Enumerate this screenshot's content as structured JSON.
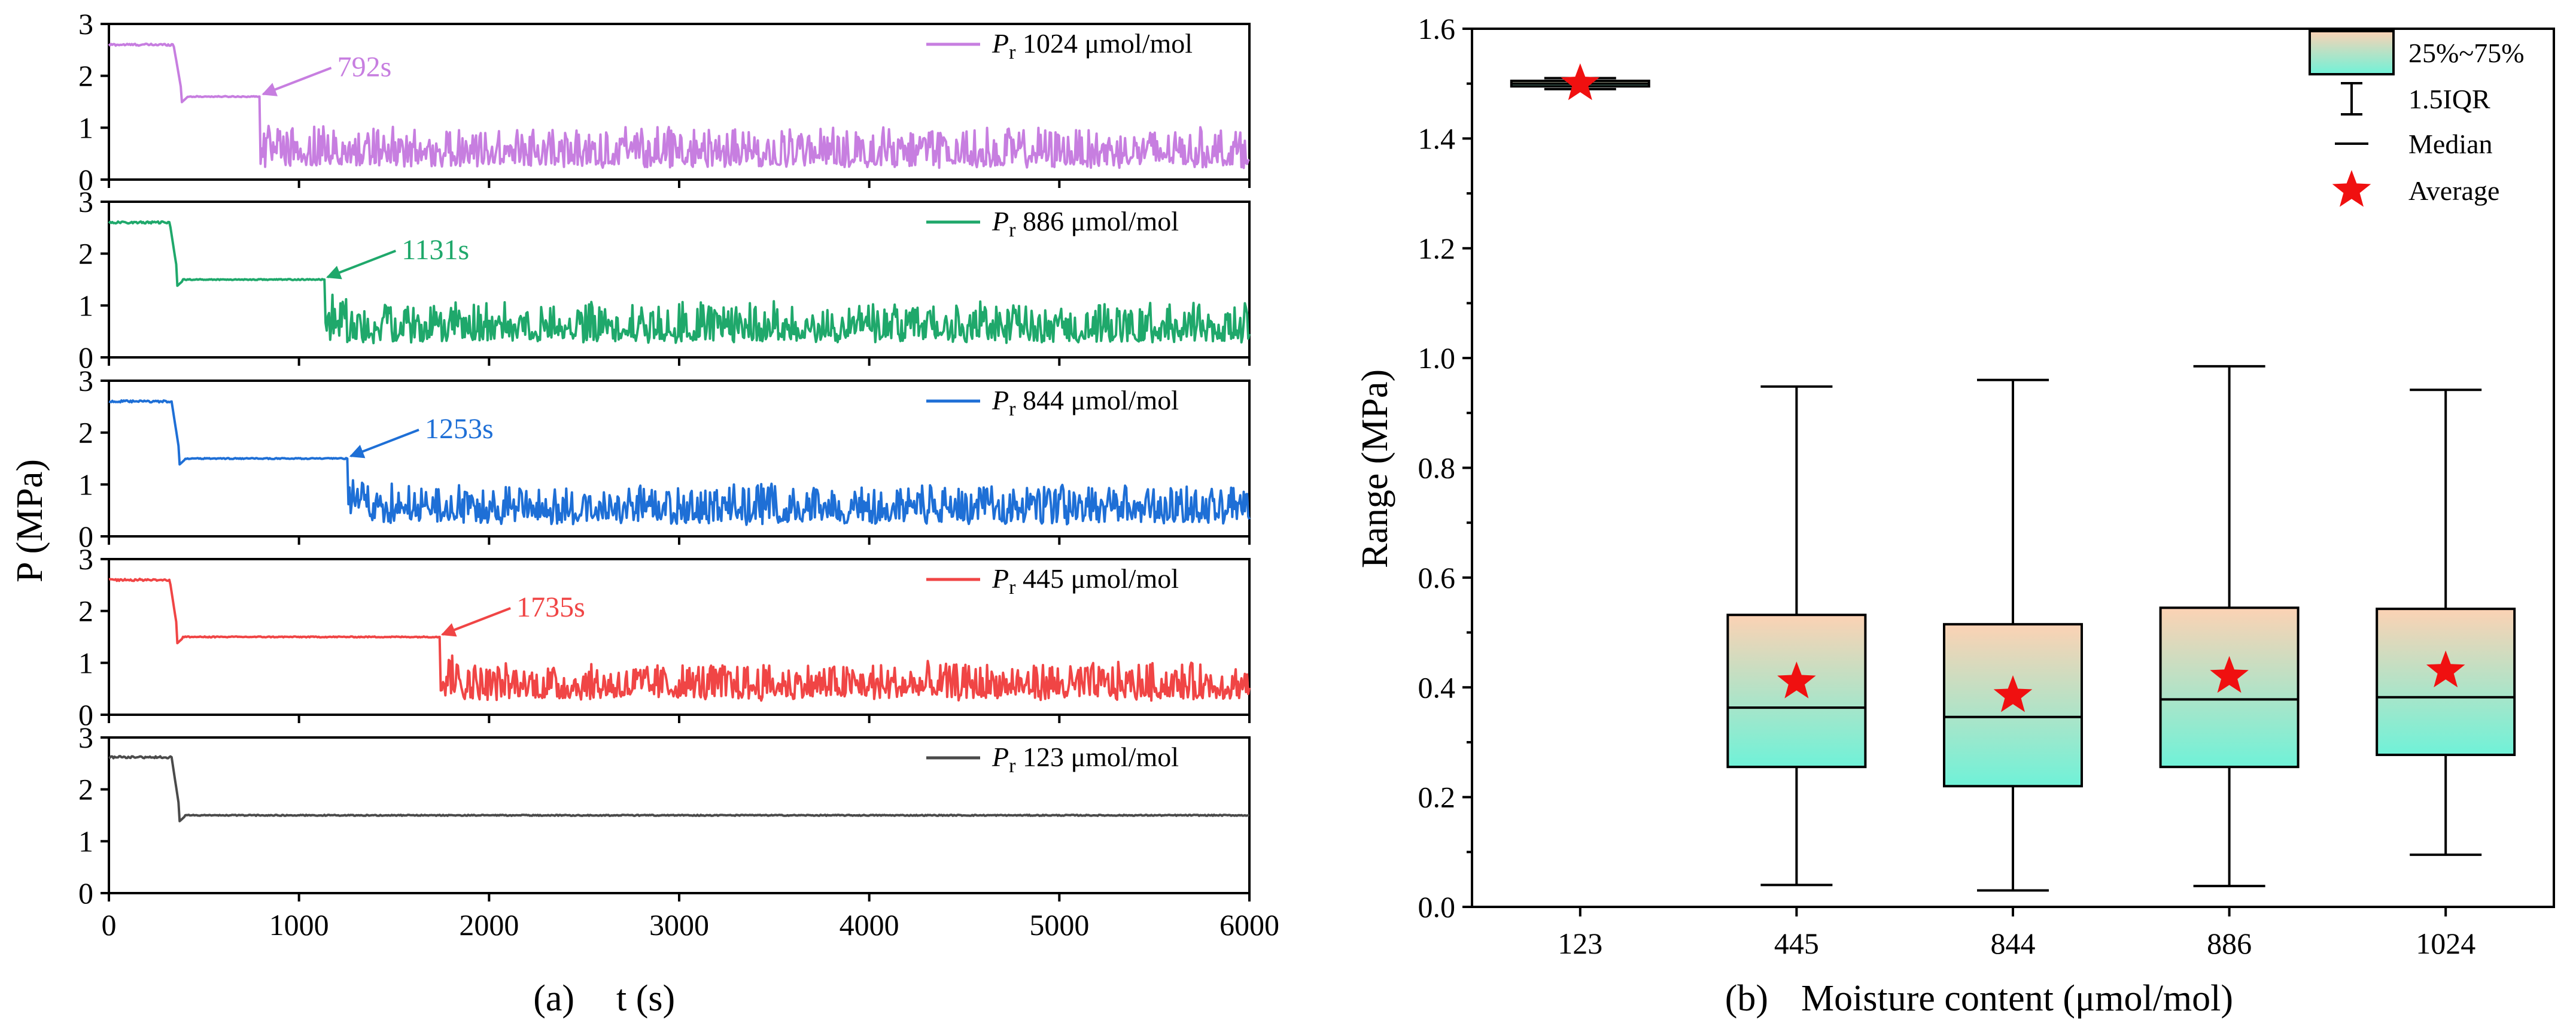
{
  "chart_data": [
    {
      "type": "line",
      "panel_label": "(a)",
      "xlabel": "t (s)",
      "ylabel": "P (MPa)",
      "xlim": [
        0,
        6000
      ],
      "x_ticks": [
        "0",
        "1000",
        "2000",
        "3000",
        "4000",
        "5000",
        "6000"
      ],
      "series": [
        {
          "name": "1024 μmol/mol",
          "symbol": "P",
          "subscript": "r",
          "color": "#c77ee0",
          "change_time": 792,
          "annotation": "792s",
          "initial": 2.6,
          "drop_time": 380,
          "plateau": 1.6,
          "osc_mean": 0.4,
          "osc_amp": 0.7,
          "ylim": [
            0,
            3
          ],
          "y_ticks": [
            "0",
            "1",
            "2",
            "3"
          ]
        },
        {
          "name": "886 μmol/mol",
          "symbol": "P",
          "subscript": "r",
          "color": "#1fa86b",
          "change_time": 1131,
          "annotation": "1131s",
          "initial": 2.6,
          "drop_time": 360,
          "plateau": 1.5,
          "osc_mean": 0.45,
          "osc_amp": 0.7,
          "ylim": [
            0,
            3
          ],
          "y_ticks": [
            "0",
            "1",
            "2",
            "3"
          ]
        },
        {
          "name": "844 μmol/mol",
          "symbol": "P",
          "subscript": "r",
          "color": "#1e6fd6",
          "change_time": 1253,
          "annotation": "1253s",
          "initial": 2.6,
          "drop_time": 370,
          "plateau": 1.5,
          "osc_mean": 0.4,
          "osc_amp": 0.7,
          "ylim": [
            0,
            3
          ],
          "y_ticks": [
            "0",
            "1",
            "2",
            "3"
          ]
        },
        {
          "name": "445 μmol/mol",
          "symbol": "P",
          "subscript": "r",
          "color": "#f04545",
          "change_time": 1735,
          "annotation": "1735s",
          "initial": 2.6,
          "drop_time": 360,
          "plateau": 1.5,
          "osc_mean": 0.45,
          "osc_amp": 0.65,
          "ylim": [
            0,
            3
          ],
          "y_ticks": [
            "0",
            "1",
            "2",
            "3"
          ]
        },
        {
          "name": "123 μmol/mol",
          "symbol": "P",
          "subscript": "r",
          "color": "#4a4a4a",
          "change_time": null,
          "annotation": "",
          "initial": 2.62,
          "drop_time": 370,
          "plateau": 1.5,
          "osc_mean": 1.5,
          "osc_amp": 0.0,
          "ylim": [
            0,
            3
          ],
          "y_ticks": [
            "0",
            "1",
            "2",
            "3"
          ]
        }
      ]
    },
    {
      "type": "box",
      "panel_label": "(b)",
      "xlabel": "Moisture content (μmol/mol)",
      "ylabel": "Range (MPa)",
      "ylim": [
        0,
        1.6
      ],
      "y_ticks": [
        "0.0",
        "0.2",
        "0.4",
        "0.6",
        "0.8",
        "1.0",
        "1.2",
        "1.4",
        "1.6"
      ],
      "categories": [
        "123",
        "445",
        "844",
        "886",
        "1024"
      ],
      "boxes": [
        {
          "category": "123",
          "whisker_low": 1.49,
          "q1": 1.495,
          "median": 1.5,
          "q3": 1.505,
          "whisker_high": 1.51,
          "mean": 1.5
        },
        {
          "category": "445",
          "whisker_low": 0.04,
          "q1": 0.255,
          "median": 0.363,
          "q3": 0.532,
          "whisker_high": 0.948,
          "mean": 0.41
        },
        {
          "category": "844",
          "whisker_low": 0.03,
          "q1": 0.22,
          "median": 0.346,
          "q3": 0.515,
          "whisker_high": 0.96,
          "mean": 0.385
        },
        {
          "category": "886",
          "whisker_low": 0.038,
          "q1": 0.255,
          "median": 0.378,
          "q3": 0.545,
          "whisker_high": 0.985,
          "mean": 0.42
        },
        {
          "category": "1024",
          "whisker_low": 0.095,
          "q1": 0.277,
          "median": 0.382,
          "q3": 0.543,
          "whisker_high": 0.942,
          "mean": 0.43
        }
      ],
      "legend": [
        {
          "key": "box",
          "label": "25%~75%"
        },
        {
          "key": "whisker",
          "label": "1.5IQR"
        },
        {
          "key": "median",
          "label": "Median"
        },
        {
          "key": "mean",
          "label": "Average"
        }
      ],
      "legend_position": "top-right",
      "colors": {
        "box_top": "#fcd2b4",
        "box_bottom": "#6ff2d8",
        "mean_star": "#f01010"
      }
    }
  ]
}
